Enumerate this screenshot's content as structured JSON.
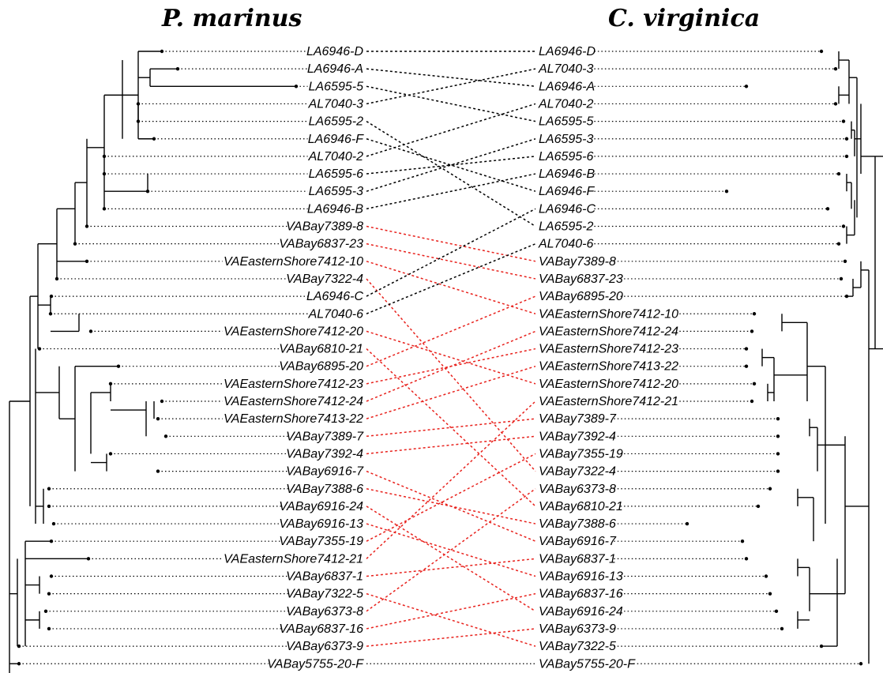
{
  "titles": {
    "left": "P. marinus",
    "right": "C. virginica"
  },
  "colors": {
    "tree": "#000000",
    "same_region_link": "#000000",
    "chesapeake_link": "#e8211c"
  },
  "left_tips": [
    "LA6946-D",
    "LA6946-A",
    "LA6595-5",
    "AL7040-3",
    "LA6595-2",
    "LA6946-F",
    "AL7040-2",
    "LA6595-6",
    "LA6595-3",
    "LA6946-B",
    "VABay7389-8",
    "VABay6837-23",
    "VAEasternShore7412-10",
    "VABay7322-4",
    "LA6946-C",
    "AL7040-6",
    "VAEasternShore7412-20",
    "VABay6810-21",
    "VABay6895-20",
    "VAEasternShore7412-23",
    "VAEasternShore7412-24",
    "VAEasternShore7413-22",
    "VABay7389-7",
    "VABay7392-4",
    "VABay6916-7",
    "VABay7388-6",
    "VABay6916-24",
    "VABay6916-13",
    "VABay7355-19",
    "VAEasternShore7412-21",
    "VABay6837-1",
    "VABay7322-5",
    "VABay6373-8",
    "VABay6837-16",
    "VABay6373-9",
    "VABay5755-20-F"
  ],
  "right_tips": [
    "LA6946-D",
    "AL7040-3",
    "LA6946-A",
    "AL7040-2",
    "LA6595-5",
    "LA6595-3",
    "LA6595-6",
    "LA6946-B",
    "LA6946-F",
    "LA6946-C",
    "LA6595-2",
    "AL7040-6",
    "VABay7389-8",
    "VABay6837-23",
    "VABay6895-20",
    "VAEasternShore7412-10",
    "VAEasternShore7412-24",
    "VAEasternShore7412-23",
    "VAEasternShore7413-22",
    "VAEasternShore7412-20",
    "VAEasternShore7412-21",
    "VABay7389-7",
    "VABay7392-4",
    "VABay7355-19",
    "VABay7322-4",
    "VABay6373-8",
    "VABay6810-21",
    "VABay7388-6",
    "VABay6916-7",
    "VABay6837-1",
    "VABay6916-13",
    "VABay6837-16",
    "VABay6916-24",
    "VABay6373-9",
    "VABay7322-5",
    "VABay5755-20-F"
  ]
}
